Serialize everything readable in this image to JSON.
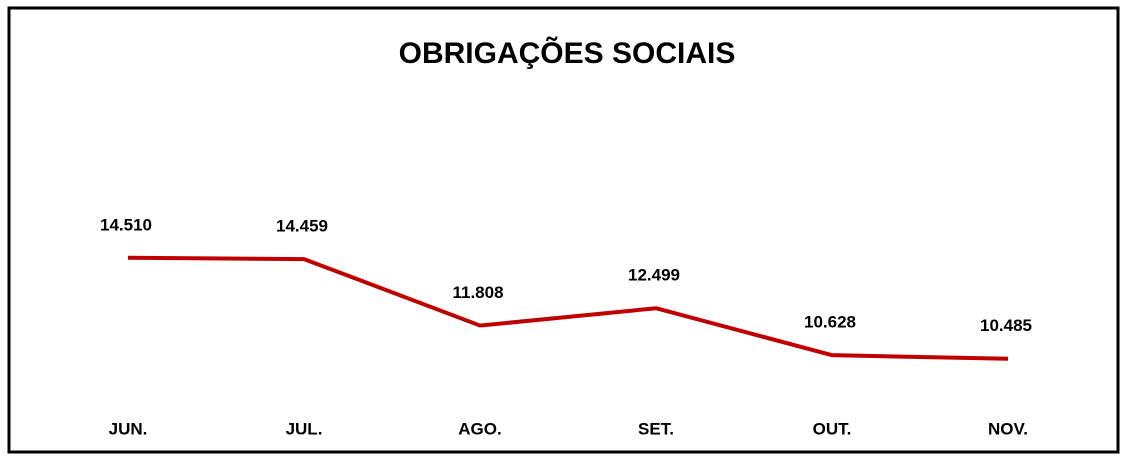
{
  "chart_data": {
    "type": "line",
    "title": "OBRIGAÇÕES SOCIAIS",
    "categories": [
      "JUN.",
      "JUL.",
      "AGO.",
      "SET.",
      "OUT.",
      "NOV."
    ],
    "series": [
      {
        "color": "#c00000",
        "values": [
          14510,
          14459,
          11808,
          12499,
          10628,
          10485
        ],
        "value_labels": [
          "14.510",
          "14.459",
          "11.808",
          "12.499",
          "10.628",
          "10.485"
        ]
      }
    ],
    "ylim": [
      9000,
      21000
    ]
  }
}
